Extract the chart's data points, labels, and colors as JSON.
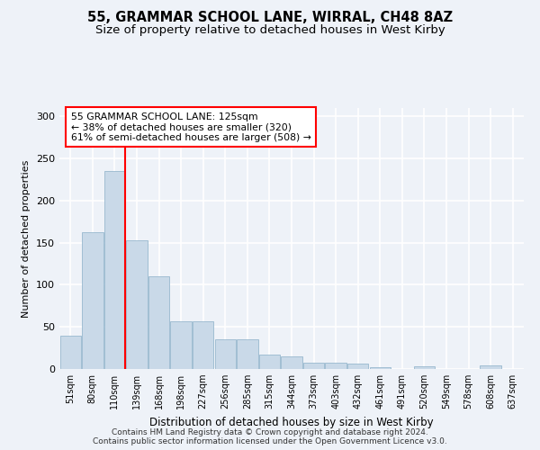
{
  "title": "55, GRAMMAR SCHOOL LANE, WIRRAL, CH48 8AZ",
  "subtitle": "Size of property relative to detached houses in West Kirby",
  "xlabel": "Distribution of detached houses by size in West Kirby",
  "ylabel": "Number of detached properties",
  "categories": [
    "51sqm",
    "80sqm",
    "110sqm",
    "139sqm",
    "168sqm",
    "198sqm",
    "227sqm",
    "256sqm",
    "285sqm",
    "315sqm",
    "344sqm",
    "373sqm",
    "403sqm",
    "432sqm",
    "461sqm",
    "491sqm",
    "520sqm",
    "549sqm",
    "578sqm",
    "608sqm",
    "637sqm"
  ],
  "values": [
    40,
    162,
    235,
    153,
    110,
    57,
    57,
    35,
    35,
    17,
    15,
    8,
    8,
    6,
    2,
    0,
    3,
    0,
    0,
    4,
    0
  ],
  "bar_color": "#c9d9e8",
  "bar_edge_color": "#8aafc8",
  "vline_pos": 2.48,
  "vline_label": "55 GRAMMAR SCHOOL LANE: 125sqm",
  "annotation_line2": "← 38% of detached houses are smaller (320)",
  "annotation_line3": "61% of semi-detached houses are larger (508) →",
  "ylim": [
    0,
    310
  ],
  "yticks": [
    0,
    50,
    100,
    150,
    200,
    250,
    300
  ],
  "footer_line1": "Contains HM Land Registry data © Crown copyright and database right 2024.",
  "footer_line2": "Contains public sector information licensed under the Open Government Licence v3.0.",
  "background_color": "#eef2f8",
  "grid_color": "#ffffff",
  "title_fontsize": 10.5,
  "subtitle_fontsize": 9.5,
  "xlabel_fontsize": 8.5,
  "ylabel_fontsize": 8,
  "annotation_fontsize": 7.8,
  "footer_fontsize": 6.5
}
